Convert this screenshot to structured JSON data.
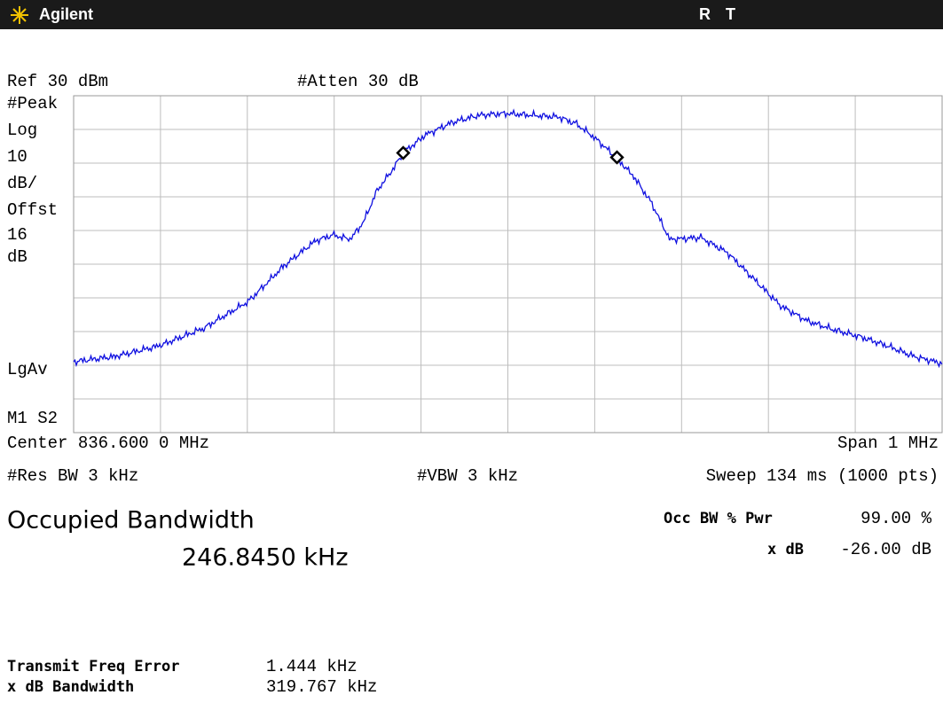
{
  "header": {
    "brand": "Agilent",
    "status_r": "R",
    "status_t": "T"
  },
  "settings": {
    "ref": "Ref 30 dBm",
    "atten": "#Atten 30 dB"
  },
  "side_labels": [
    "#Peak",
    "Log",
    "10",
    "dB/",
    "Offst",
    "16",
    "dB",
    "LgAv",
    "M1  S2"
  ],
  "footer": {
    "center": "Center 836.600 0 MHz",
    "span": "Span 1 MHz",
    "res_bw": "#Res BW 3 kHz",
    "vbw": "#VBW 3 kHz",
    "sweep": "Sweep 134 ms (1000 pts)"
  },
  "result": {
    "title": "Occupied Bandwidth",
    "value": "246.8450 kHz",
    "occ_label": "Occ BW % Pwr",
    "occ_value": "99.00 %",
    "xdb_label": "x dB",
    "xdb_value": "-26.00 dB"
  },
  "details": [
    {
      "label": "Transmit Freq Error",
      "value": "1.444 kHz"
    },
    {
      "label": "x dB Bandwidth",
      "value": "319.767 kHz"
    }
  ]
}
